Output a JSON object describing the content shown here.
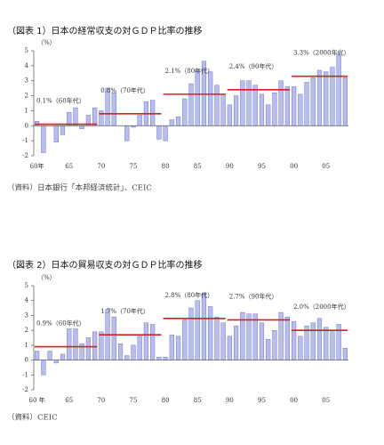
{
  "chart_data": [
    {
      "type": "bar",
      "title": "（図表 1）日本の経常収支の対ＧＤＰ比率の推移",
      "y_unit": "（%）",
      "source": "（資料）日本銀行「本邦経済統計」、CEIC",
      "categories": [
        "60年",
        null,
        null,
        null,
        null,
        "65",
        null,
        null,
        null,
        null,
        "70",
        null,
        null,
        null,
        null,
        "75",
        null,
        null,
        null,
        null,
        "80",
        null,
        null,
        null,
        null,
        "85",
        null,
        null,
        null,
        null,
        "90",
        null,
        null,
        null,
        null,
        "95",
        null,
        null,
        null,
        null,
        "00",
        null,
        null,
        null,
        null,
        "05",
        null,
        null,
        null
      ],
      "values": [
        0.3,
        -1.8,
        0,
        -1.1,
        -0.6,
        0.9,
        1.2,
        -0.2,
        0.7,
        1.2,
        1.0,
        2.5,
        2.2,
        0,
        -1.0,
        -0.1,
        0.7,
        1.6,
        1.7,
        -0.9,
        -1.0,
        0.4,
        0.6,
        1.8,
        2.8,
        3.7,
        4.3,
        3.6,
        2.7,
        2.1,
        1.4,
        2.0,
        3.0,
        3.0,
        2.7,
        2.1,
        1.4,
        2.2,
        3.0,
        2.6,
        2.6,
        2.1,
        2.9,
        3.2,
        3.7,
        3.6,
        3.9,
        4.8,
        3.2
      ],
      "color": "#b8bdf0",
      "averages": [
        {
          "value": 0.1,
          "label": "0.1%（60年代）"
        },
        {
          "value": 0.8,
          "label": "0.8%（70年代）"
        },
        {
          "value": 2.1,
          "label": "2.1%（80年代）"
        },
        {
          "value": 2.4,
          "label": "2.4%（90年代）"
        },
        {
          "value": 3.3,
          "label": "3.3%（2000年代）"
        }
      ],
      "average_color": "#d42020",
      "ylim": [
        -2,
        5
      ],
      "yticks": [
        -2,
        -1,
        0,
        1,
        2,
        3,
        4,
        5
      ]
    },
    {
      "type": "bar",
      "title": "（図表 2）日本の貿易収支の対ＧＤＰ比率の推移",
      "y_unit": "（%）",
      "source": "（資料）CEIC",
      "categories": [
        "60 年",
        null,
        null,
        null,
        null,
        "65",
        null,
        null,
        null,
        null,
        "70",
        null,
        null,
        null,
        null,
        "75",
        null,
        null,
        null,
        null,
        "80",
        null,
        null,
        null,
        null,
        "85",
        null,
        null,
        null,
        null,
        "90",
        null,
        null,
        null,
        null,
        "95",
        null,
        null,
        null,
        null,
        "00",
        null,
        null,
        null,
        null,
        "05",
        null,
        null,
        null
      ],
      "values": [
        0.6,
        -1.0,
        0.6,
        -0.2,
        0.4,
        2.1,
        2.1,
        1.1,
        1.5,
        1.9,
        1.9,
        3.4,
        2.9,
        1.1,
        0.3,
        1.0,
        1.7,
        2.5,
        2.4,
        0.2,
        0.2,
        1.7,
        1.6,
        2.7,
        3.5,
        4.0,
        4.5,
        3.6,
        2.9,
        2.5,
        1.6,
        2.3,
        3.2,
        3.1,
        3.1,
        2.5,
        1.4,
        2.0,
        3.2,
        2.9,
        2.6,
        1.6,
        2.3,
        2.5,
        2.8,
        2.2,
        1.9,
        2.4,
        0.8
      ],
      "color": "#b8bdf0",
      "averages": [
        {
          "value": 0.9,
          "label": "0.9%（60年代）"
        },
        {
          "value": 1.7,
          "label": "1.7%（70年代）"
        },
        {
          "value": 2.8,
          "label": "2.8%（80年代）"
        },
        {
          "value": 2.7,
          "label": "2.7%（90年代）"
        },
        {
          "value": 2.0,
          "label": "2.0%（2000年代）"
        }
      ],
      "average_color": "#d42020",
      "ylim": [
        -2,
        5
      ],
      "yticks": [
        -2,
        -1,
        0,
        1,
        2,
        3,
        4,
        5
      ]
    }
  ]
}
